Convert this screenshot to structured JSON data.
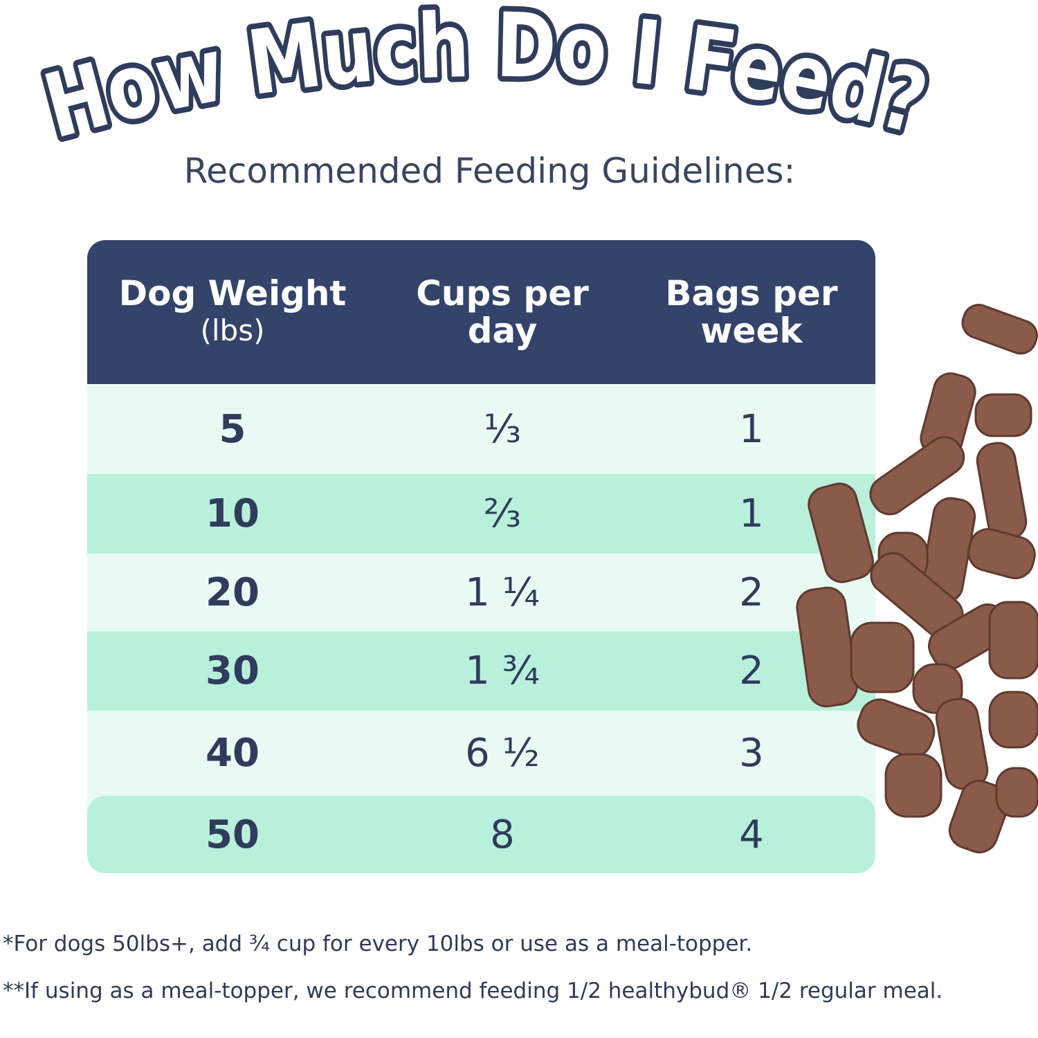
{
  "header": {
    "title": "How Much Do I Feed?",
    "subtitle": "Recommended Feeding Guidelines:"
  },
  "table": {
    "columns": [
      {
        "label": "Dog Weight",
        "unit": "(lbs)"
      },
      {
        "label": "Cups per day"
      },
      {
        "label": "Bags per week"
      }
    ],
    "rows": [
      [
        "5",
        "⅓",
        "1"
      ],
      [
        "10",
        "⅔",
        "1"
      ],
      [
        "20",
        "1 ¼",
        "2"
      ],
      [
        "30",
        "1 ¾",
        "2"
      ],
      [
        "40",
        "6 ½",
        "3"
      ],
      [
        "50",
        "8",
        "4"
      ]
    ]
  },
  "footnotes": [
    "*For dogs 50lbs+, add ¾ cup for every 10lbs or use as a meal-topper.",
    "**If using as a meal-topper, we recommend feeding 1/2 healthybud® 1/2 regular meal."
  ]
}
